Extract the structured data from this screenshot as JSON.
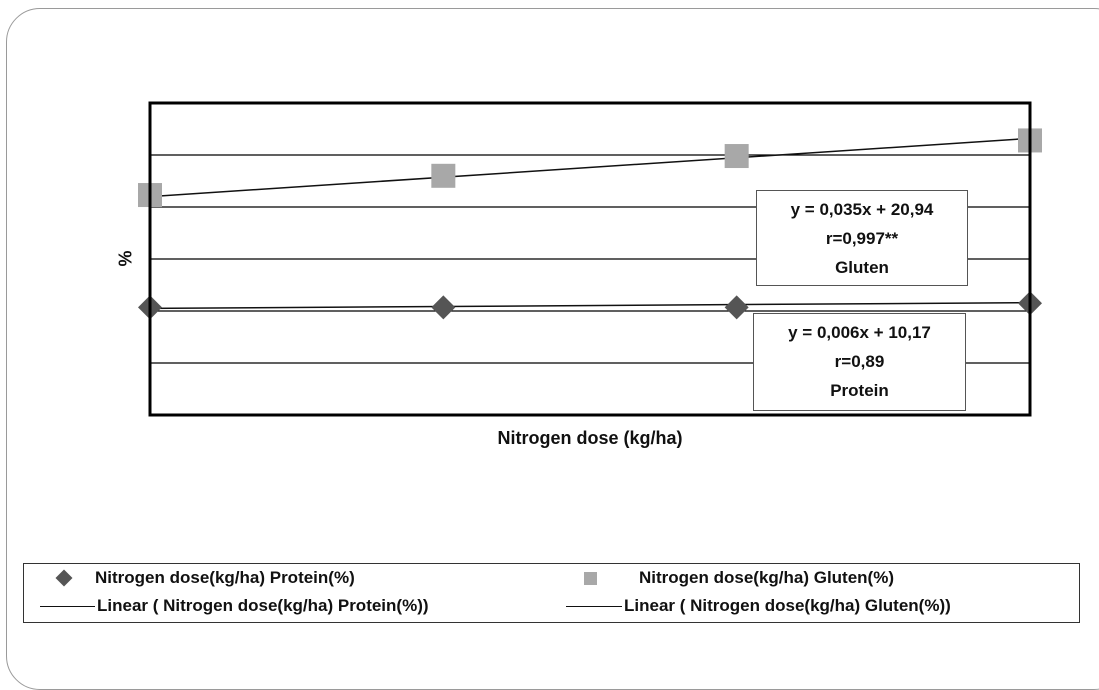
{
  "chart_data": {
    "type": "scatter",
    "title": "",
    "xlabel": "Nitrogen dose (kg/ha)",
    "ylabel": "%",
    "x": [
      0,
      1,
      2,
      3
    ],
    "ylim": [
      0,
      6
    ],
    "grid": true,
    "series": [
      {
        "name": "Nitrogen dose(kg/ha) Protein(%)",
        "marker": "diamond",
        "color": "#555555",
        "values": [
          2.07,
          2.07,
          2.07,
          2.15
        ]
      },
      {
        "name": "Nitrogen dose(kg/ha) Gluten(%)",
        "marker": "square",
        "color": "#a8a8a8",
        "values": [
          4.23,
          4.6,
          4.98,
          5.28
        ]
      }
    ],
    "trendlines": [
      {
        "name": "Linear ( Nitrogen dose(kg/ha) Protein(%))",
        "from": 2.05,
        "to": 2.16,
        "equation": "y = 0,006x + 10,17",
        "r": "r=0,89",
        "label": "Protein"
      },
      {
        "name": "Linear ( Nitrogen dose(kg/ha) Gluten(%))",
        "from": 4.2,
        "to": 5.32,
        "equation": "y = 0,035x + 20,94",
        "r": "r=0,997**",
        "label": "Gluten"
      }
    ],
    "legend_position": "bottom"
  }
}
